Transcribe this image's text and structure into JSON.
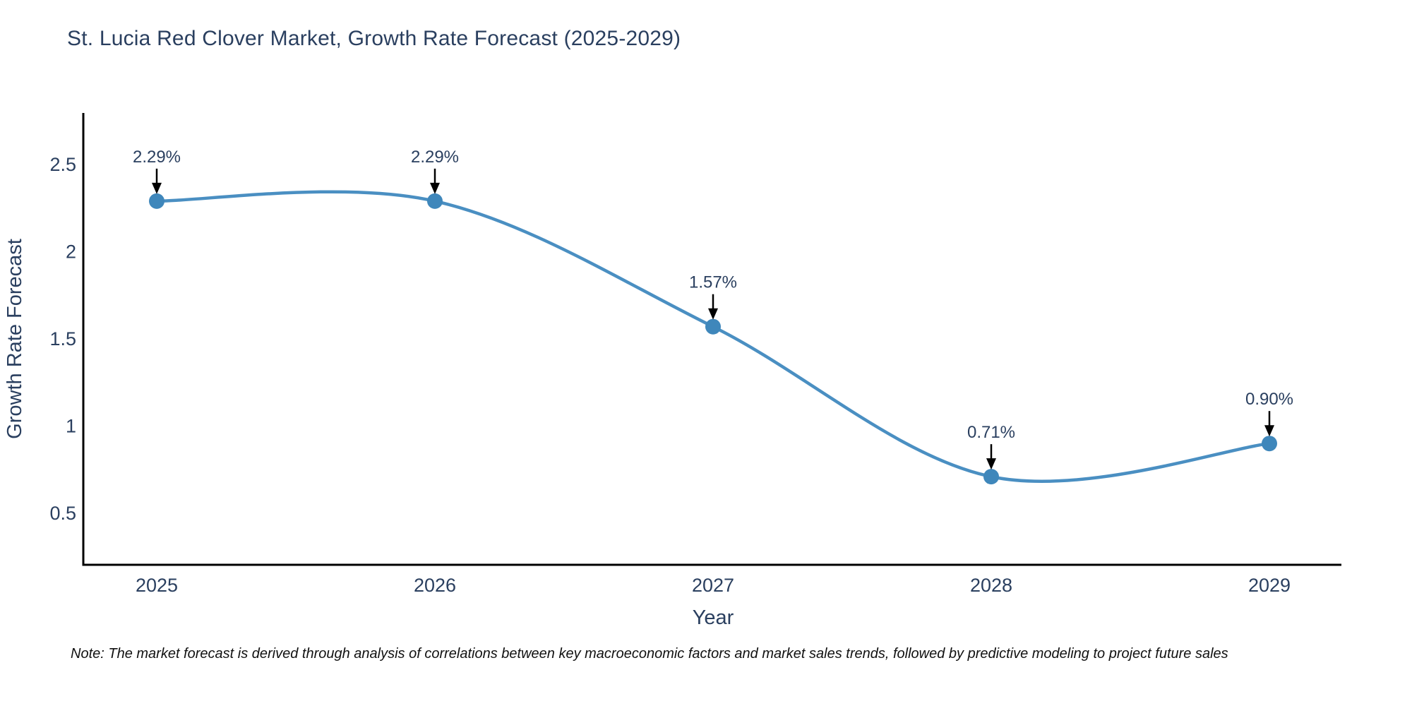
{
  "chart_data": {
    "type": "line",
    "title": "St. Lucia Red Clover Market, Growth Rate Forecast (2025-2029)",
    "xlabel": "Year",
    "ylabel": "Growth Rate Forecast",
    "x": [
      2025,
      2026,
      2027,
      2028,
      2029
    ],
    "values": [
      2.29,
      2.29,
      1.57,
      0.71,
      0.9
    ],
    "point_labels": [
      "2.29%",
      "2.29%",
      "1.57%",
      "0.71%",
      "0.90%"
    ],
    "yticks": [
      0.5,
      1,
      1.5,
      2,
      2.5
    ],
    "ylim": [
      0.17,
      2.8
    ],
    "line_shape": "spline",
    "grid": false,
    "legend_visible": false,
    "colors": {
      "line": "#4a8fc2",
      "marker": "#3f87bb",
      "axis": "#000000",
      "text": "#2a3f5f",
      "annotation_arrow": "#000000"
    },
    "note": "Note: The market forecast is derived through analysis of correlations between key macroeconomic factors and market sales trends, followed by predictive modeling to project future sales"
  }
}
